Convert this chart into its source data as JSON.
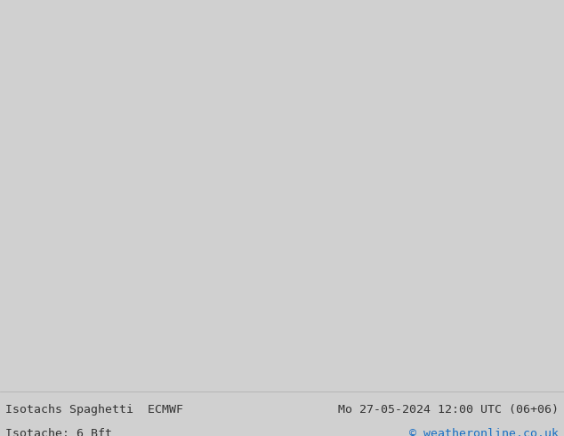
{
  "title_left": "Isotachs Spaghetti  ECMWF",
  "title_right": "Mo 27-05-2024 12:00 UTC (06+06)",
  "subtitle_left": "Isotache: 6 Bft",
  "subtitle_right": "© weatheronline.co.uk",
  "bg_color": "#d0d0d0",
  "land_color": "#b2f0a0",
  "border_color": "#555555",
  "ocean_color": "#e0e0e0",
  "footer_bg": "#ffffff",
  "footer_text_color": "#333333",
  "copyright_color": "#1a6fc4",
  "title_fontsize": 9.5,
  "subtitle_fontsize": 9.5,
  "figsize": [
    6.34,
    4.9
  ],
  "dpi": 100,
  "map_extent": [
    -175,
    -50,
    15,
    85
  ],
  "spaghetti_colors": [
    "#ff0000",
    "#00cc00",
    "#0000ff",
    "#ff00ff",
    "#00cccc",
    "#ff8800",
    "#8800ff",
    "#ff0088",
    "#00ff88",
    "#aacc00"
  ],
  "num_members": 10
}
